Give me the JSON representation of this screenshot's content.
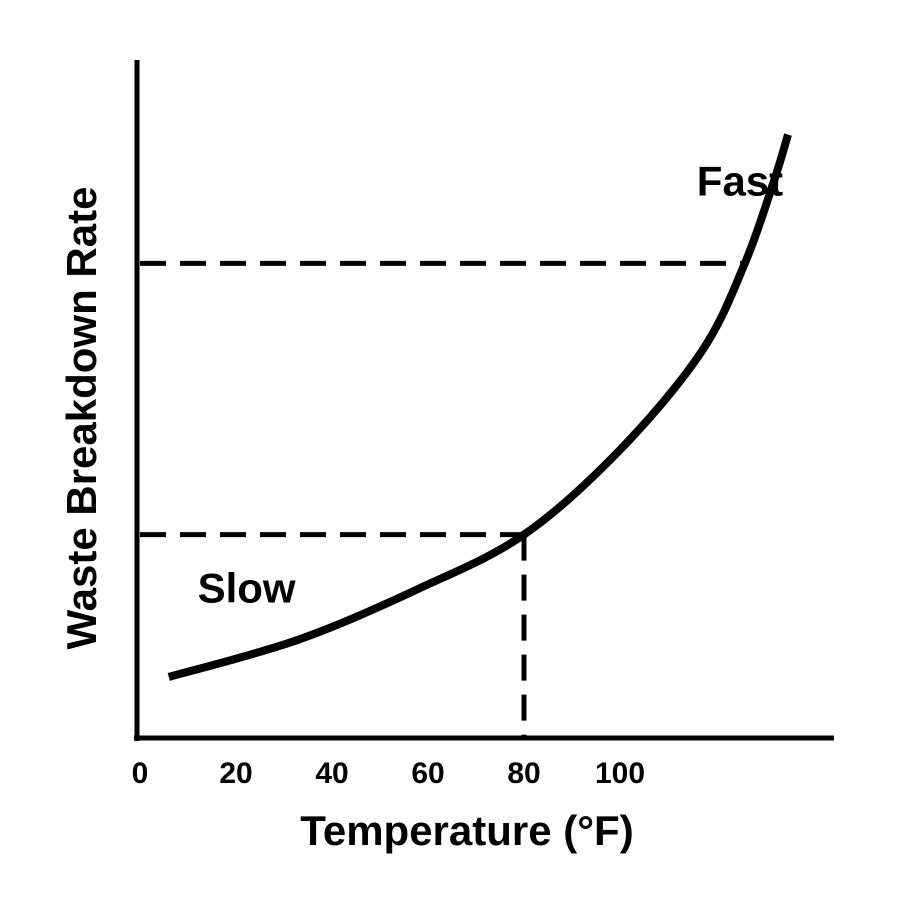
{
  "chart_data": {
    "type": "line",
    "title": "",
    "xlabel": "Temperature (°F)",
    "ylabel": "Waste Breakdown Rate",
    "xlim": [
      0,
      144
    ],
    "ylim": [
      0,
      100
    ],
    "x_ticks": [
      "0",
      "20",
      "40",
      "60",
      "80",
      "100"
    ],
    "y_ticks": [],
    "grid": false,
    "series": [
      {
        "x": [
          6,
          33,
          58,
          80,
          100,
          117,
          126,
          132,
          135
        ],
        "y": [
          9,
          14.5,
          22,
          30,
          42.5,
          57,
          70,
          82,
          89
        ]
      }
    ],
    "reference_lines": [
      {
        "type": "horizontal",
        "y": 30,
        "to_x": 80
      },
      {
        "type": "vertical",
        "x": 80,
        "to_y": 30
      },
      {
        "type": "horizontal",
        "y": 70,
        "to_x": 126
      }
    ],
    "annotations": [
      {
        "text": "Slow",
        "x": 12,
        "y": 20
      },
      {
        "text": "Fast",
        "x": 116,
        "y": 80
      }
    ],
    "color": "#000000"
  }
}
